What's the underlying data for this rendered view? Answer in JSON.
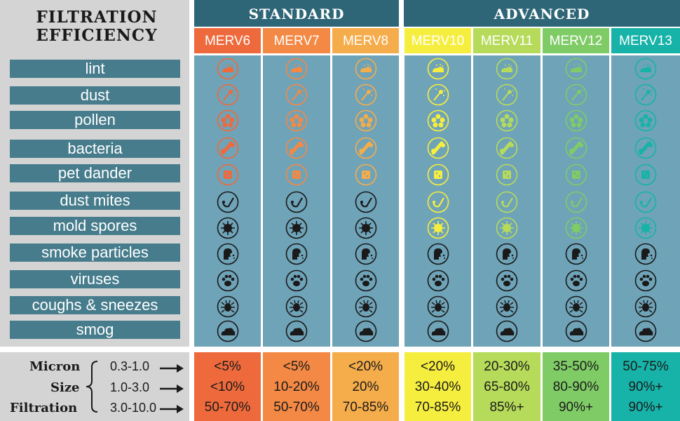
{
  "title_line1": "FILTRATION",
  "title_line2": "EFFICIENCY",
  "contaminants": [
    "lint",
    "dust",
    "pollen",
    "bacteria",
    "pet dander",
    "dust mites",
    "mold spores",
    "smoke particles",
    "viruses",
    "coughs & sneezes",
    "smog"
  ],
  "groups": {
    "standard": "STANDARD",
    "advanced": "ADVANCED"
  },
  "ratings": [
    {
      "label": "MERV6",
      "color": "#ee6a3c",
      "icon_color": "#ee6a3c",
      "captured": 5,
      "bottom_color": "#ee6a3c",
      "values": [
        "<5%",
        "<10%",
        "50-70%"
      ]
    },
    {
      "label": "MERV7",
      "color": "#f38944",
      "icon_color": "#f38944",
      "captured": 5,
      "bottom_color": "#f38944",
      "values": [
        "<5%",
        "10-20%",
        "50-70%"
      ]
    },
    {
      "label": "MERV8",
      "color": "#f5ac4a",
      "icon_color": "#f5ac4a",
      "captured": 5,
      "bottom_color": "#f5ac4a",
      "values": [
        "<20%",
        "20%",
        "70-85%"
      ]
    },
    {
      "label": "MERV10",
      "color": "#f6ee3f",
      "icon_color": "#f6ee3f",
      "captured": 7,
      "bottom_color": "#f6ee3f",
      "values": [
        "<20%",
        "30-40%",
        "70-85%"
      ]
    },
    {
      "label": "MERV11",
      "color": "#b6db5a",
      "icon_color": "#b6db5a",
      "captured": 7,
      "bottom_color": "#b6db5a",
      "values": [
        "20-30%",
        "65-80%",
        "85%+"
      ]
    },
    {
      "label": "MERV12",
      "color": "#7fcc66",
      "icon_color": "#7fcc66",
      "captured": 7,
      "bottom_color": "#7fcc66",
      "values": [
        "35-50%",
        "80-90%",
        "90%+"
      ]
    },
    {
      "label": "MERV13",
      "color": "#17b3a8",
      "icon_color": "#17b3a8",
      "captured": 7,
      "bottom_color": "#17b3a8",
      "values": [
        "50-75%",
        "90%+",
        "90%+"
      ]
    }
  ],
  "micron": {
    "label_lines": [
      "Micron",
      "Size",
      "Filtration"
    ],
    "ranges": [
      "0.3-1.0",
      "1.0-3.0",
      "3.0-10.0"
    ]
  },
  "icons": [
    "lint-icon",
    "dust-icon",
    "pollen-icon",
    "bacteria-icon",
    "pet-dander-icon",
    "dust-mite-icon",
    "mold-spore-icon",
    "smoke-icon",
    "virus-icon",
    "sneeze-icon",
    "smog-icon"
  ]
}
